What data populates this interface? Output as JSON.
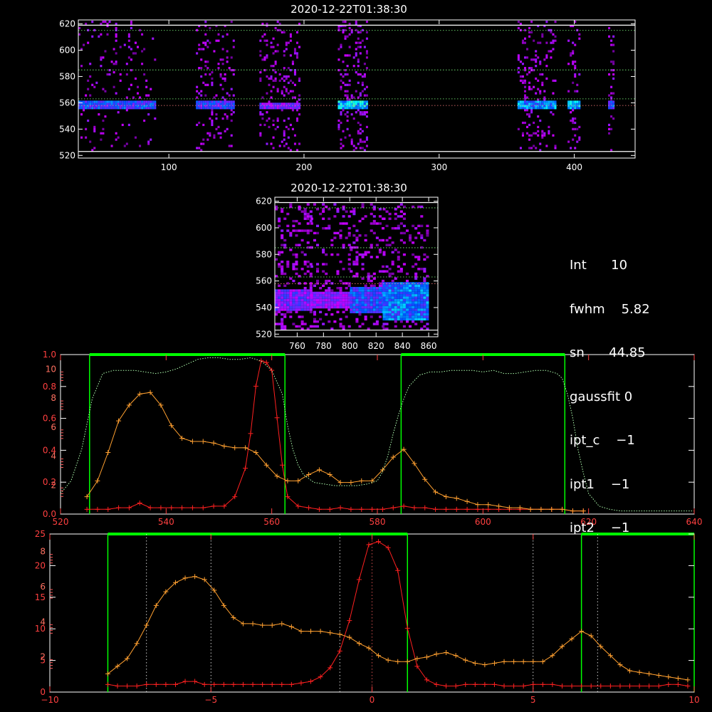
{
  "colors": {
    "background": "#000000",
    "axis": "#ffffff",
    "green": "#00ff00",
    "red": "#ff2020",
    "orange": "#ffa030",
    "dim_green": "#b0ffb0"
  },
  "panel_top": {
    "title": "2020-12-22T01:38:30",
    "xticks": [
      100,
      200,
      300,
      400
    ],
    "yticks": [
      520,
      540,
      560,
      580,
      600,
      620
    ],
    "xlim": [
      33,
      445
    ],
    "ylim": [
      518,
      623
    ]
  },
  "panel_mid": {
    "title": "2020-12-22T01:38:30",
    "xticks": [
      760,
      780,
      800,
      820,
      840,
      860
    ],
    "yticks": [
      520,
      540,
      560,
      580,
      600,
      620
    ],
    "xlim": [
      743,
      867
    ],
    "ylim": [
      518,
      623
    ]
  },
  "info": [
    {
      "key": "Int",
      "value": "10"
    },
    {
      "key": "fwhm",
      "value": "5.82"
    },
    {
      "key": "sn",
      "value": "44.85"
    },
    {
      "key": "gaussfit",
      "value": "0"
    },
    {
      "key": "ipt_c",
      "value": "−1"
    },
    {
      "key": "ipt1",
      "value": "−1"
    },
    {
      "key": "ipt2",
      "value": "−1"
    }
  ],
  "chart_data": [
    {
      "type": "line",
      "panel": "wavelength",
      "xlim": [
        520,
        640
      ],
      "xticks": [
        520,
        540,
        560,
        580,
        600,
        620,
        640
      ],
      "yticks_left_white": [
        "0.0",
        "0.2",
        "0.4",
        "0.6",
        "0.8",
        "1.0"
      ],
      "yticks_left_red": [
        "2",
        "4",
        "6",
        "8",
        "10"
      ],
      "green_windows": [
        [
          525.5,
          562.5
        ],
        [
          584.5,
          615.5
        ]
      ],
      "series": [
        {
          "color": "red",
          "x": [
            525,
            527,
            529,
            531,
            533,
            535,
            537,
            539,
            541,
            543,
            545,
            547,
            549,
            551,
            553,
            555,
            556,
            557,
            558,
            559,
            560,
            561,
            562,
            563,
            565,
            567,
            569,
            571,
            573,
            575,
            577,
            579,
            581,
            583,
            585,
            587,
            589,
            591,
            593,
            595,
            597,
            599,
            601,
            603,
            605,
            607,
            609,
            611,
            613,
            615,
            617,
            619
          ],
          "y": [
            0.02,
            0.02,
            0.02,
            0.03,
            0.03,
            0.06,
            0.03,
            0.03,
            0.03,
            0.03,
            0.03,
            0.03,
            0.04,
            0.04,
            0.1,
            0.28,
            0.5,
            0.8,
            0.96,
            0.95,
            0.9,
            0.6,
            0.3,
            0.1,
            0.04,
            0.03,
            0.02,
            0.02,
            0.03,
            0.02,
            0.02,
            0.02,
            0.02,
            0.03,
            0.04,
            0.03,
            0.03,
            0.02,
            0.02,
            0.02,
            0.02,
            0.02,
            0.02,
            0.02,
            0.02,
            0.02,
            0.02,
            0.02,
            0.02,
            0.02,
            0.01,
            0.01
          ]
        },
        {
          "color": "orange",
          "x": [
            525,
            527,
            529,
            531,
            533,
            535,
            537,
            539,
            541,
            543,
            545,
            547,
            549,
            551,
            553,
            555,
            557,
            559,
            561,
            563,
            565,
            567,
            569,
            571,
            573,
            575,
            577,
            579,
            581,
            583,
            585,
            587,
            589,
            591,
            593,
            595,
            597,
            599,
            601,
            603,
            605,
            607,
            609,
            611,
            613,
            615,
            617,
            619
          ],
          "y": [
            0.1,
            0.2,
            0.38,
            0.58,
            0.68,
            0.75,
            0.76,
            0.68,
            0.55,
            0.47,
            0.45,
            0.45,
            0.44,
            0.42,
            0.41,
            0.41,
            0.38,
            0.3,
            0.23,
            0.2,
            0.2,
            0.24,
            0.27,
            0.24,
            0.19,
            0.19,
            0.2,
            0.2,
            0.27,
            0.35,
            0.4,
            0.31,
            0.21,
            0.13,
            0.1,
            0.09,
            0.07,
            0.05,
            0.05,
            0.04,
            0.03,
            0.03,
            0.02,
            0.02,
            0.02,
            0.02,
            0.01,
            0.01
          ]
        },
        {
          "color": "dim_green",
          "x": [
            520,
            522,
            524,
            526,
            528,
            530,
            532,
            534,
            536,
            538,
            540,
            542,
            544,
            546,
            548,
            550,
            552,
            554,
            556,
            558,
            560,
            562,
            563,
            564,
            565,
            566,
            568,
            570,
            572,
            574,
            576,
            578,
            580,
            581,
            582,
            583,
            584,
            585,
            586,
            588,
            590,
            592,
            594,
            596,
            598,
            600,
            602,
            604,
            606,
            608,
            610,
            612,
            614,
            615,
            616,
            617,
            618,
            619,
            620,
            622,
            624,
            626,
            628,
            630,
            632,
            634,
            636,
            638,
            640
          ],
          "y": [
            0.12,
            0.2,
            0.4,
            0.72,
            0.88,
            0.9,
            0.9,
            0.9,
            0.89,
            0.88,
            0.89,
            0.91,
            0.94,
            0.97,
            0.98,
            0.98,
            0.97,
            0.97,
            0.98,
            0.96,
            0.9,
            0.75,
            0.55,
            0.4,
            0.3,
            0.24,
            0.19,
            0.18,
            0.17,
            0.17,
            0.17,
            0.18,
            0.2,
            0.26,
            0.36,
            0.5,
            0.62,
            0.72,
            0.8,
            0.87,
            0.89,
            0.89,
            0.9,
            0.9,
            0.9,
            0.89,
            0.9,
            0.88,
            0.88,
            0.89,
            0.9,
            0.9,
            0.88,
            0.85,
            0.75,
            0.6,
            0.4,
            0.25,
            0.12,
            0.04,
            0.02,
            0.01,
            0.01,
            0.01,
            0.01,
            0.01,
            0.01,
            0.01,
            0.01
          ]
        }
      ]
    },
    {
      "type": "line",
      "panel": "velocity",
      "xlim": [
        -10,
        10
      ],
      "xticks": [
        -10,
        -5,
        0,
        5,
        10
      ],
      "yticks_left_red": [
        "0",
        "5",
        "10",
        "15",
        "20",
        "25"
      ],
      "yticks_left_orange": [
        "2",
        "4",
        "6",
        "8"
      ],
      "green_windows": [
        [
          -8.2,
          1.1
        ],
        [
          6.5,
          10.0
        ]
      ],
      "dotted_lines": [
        -7.0,
        -5.0,
        -1.0,
        0.0,
        5.0,
        7.0
      ],
      "series": [
        {
          "color": "red",
          "x": [
            -8.2,
            -7.9,
            -7.6,
            -7.3,
            -7.0,
            -6.7,
            -6.4,
            -6.1,
            -5.8,
            -5.5,
            -5.2,
            -4.9,
            -4.6,
            -4.3,
            -4.0,
            -3.7,
            -3.4,
            -3.1,
            -2.8,
            -2.5,
            -2.2,
            -1.9,
            -1.6,
            -1.3,
            -1.0,
            -0.7,
            -0.4,
            -0.1,
            0.2,
            0.5,
            0.8,
            1.1,
            1.4,
            1.7,
            2.0,
            2.3,
            2.6,
            2.9,
            3.2,
            3.5,
            3.8,
            4.1,
            4.4,
            4.7,
            5.0,
            5.3,
            5.6,
            5.9,
            6.2,
            6.5,
            6.8,
            7.1,
            7.4,
            7.7,
            8.0,
            8.3,
            8.6,
            8.9,
            9.2,
            9.5,
            9.8
          ],
          "y": [
            0.03,
            0.02,
            0.02,
            0.02,
            0.03,
            0.03,
            0.03,
            0.03,
            0.05,
            0.05,
            0.03,
            0.03,
            0.03,
            0.03,
            0.03,
            0.03,
            0.03,
            0.03,
            0.03,
            0.03,
            0.04,
            0.05,
            0.08,
            0.14,
            0.25,
            0.45,
            0.72,
            0.95,
            0.97,
            0.93,
            0.78,
            0.4,
            0.15,
            0.06,
            0.03,
            0.02,
            0.02,
            0.03,
            0.03,
            0.03,
            0.03,
            0.02,
            0.02,
            0.02,
            0.03,
            0.03,
            0.03,
            0.02,
            0.02,
            0.02,
            0.02,
            0.02,
            0.02,
            0.02,
            0.02,
            0.02,
            0.02,
            0.02,
            0.03,
            0.03,
            0.02
          ]
        },
        {
          "color": "orange",
          "x": [
            -8.2,
            -7.9,
            -7.6,
            -7.3,
            -7.0,
            -6.7,
            -6.4,
            -6.1,
            -5.8,
            -5.5,
            -5.2,
            -4.9,
            -4.6,
            -4.3,
            -4.0,
            -3.7,
            -3.4,
            -3.1,
            -2.8,
            -2.5,
            -2.2,
            -1.9,
            -1.6,
            -1.3,
            -1.0,
            -0.7,
            -0.4,
            -0.1,
            0.2,
            0.5,
            0.8,
            1.1,
            1.4,
            1.7,
            2.0,
            2.3,
            2.6,
            2.9,
            3.2,
            3.5,
            3.8,
            4.1,
            4.4,
            4.7,
            5.0,
            5.3,
            5.6,
            5.9,
            6.2,
            6.5,
            6.8,
            7.1,
            7.4,
            7.7,
            8.0,
            8.3,
            8.6,
            8.9,
            9.2,
            9.5,
            9.8
          ],
          "y": [
            0.1,
            0.15,
            0.2,
            0.3,
            0.42,
            0.55,
            0.64,
            0.7,
            0.73,
            0.74,
            0.72,
            0.65,
            0.55,
            0.47,
            0.43,
            0.43,
            0.42,
            0.42,
            0.43,
            0.41,
            0.38,
            0.38,
            0.38,
            0.37,
            0.36,
            0.34,
            0.3,
            0.27,
            0.22,
            0.19,
            0.18,
            0.18,
            0.2,
            0.21,
            0.23,
            0.24,
            0.22,
            0.19,
            0.17,
            0.16,
            0.17,
            0.18,
            0.18,
            0.18,
            0.18,
            0.18,
            0.22,
            0.28,
            0.33,
            0.38,
            0.35,
            0.28,
            0.22,
            0.16,
            0.12,
            0.11,
            0.1,
            0.09,
            0.08,
            0.07,
            0.06
          ]
        }
      ]
    }
  ]
}
